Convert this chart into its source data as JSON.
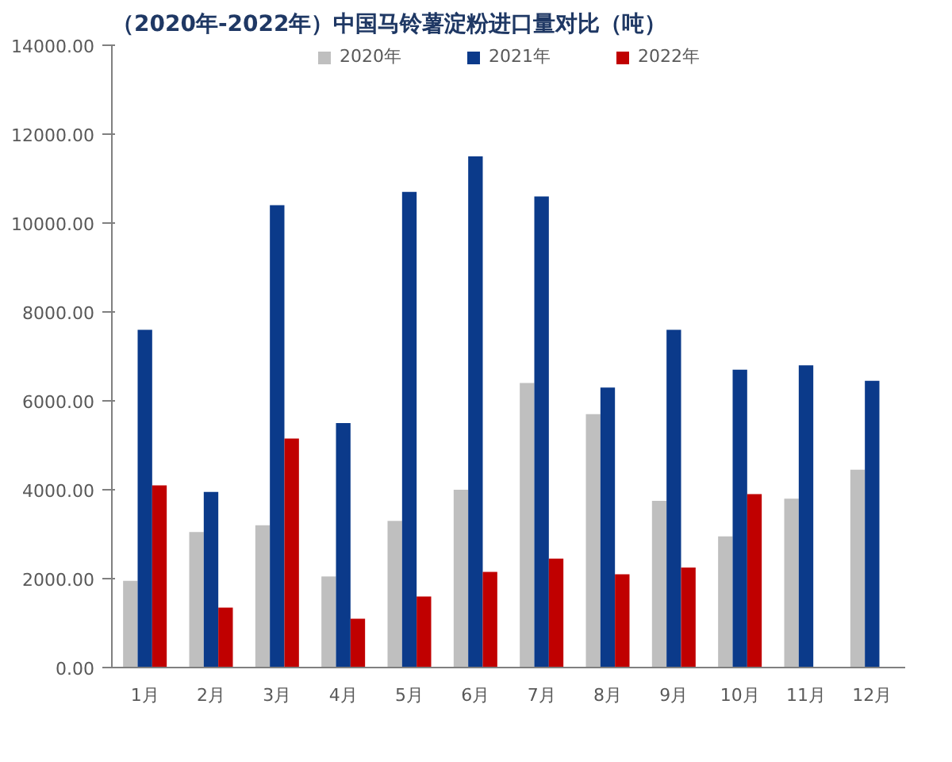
{
  "chart_data": {
    "type": "bar",
    "title": "（2020年-2022年）中国马铃薯淀粉进口量对比（吨）",
    "categories": [
      "1月",
      "2月",
      "3月",
      "4月",
      "5月",
      "6月",
      "7月",
      "8月",
      "9月",
      "10月",
      "11月",
      "12月"
    ],
    "series": [
      {
        "name": "2020年",
        "color": "#bfbfbf",
        "values": [
          1950,
          3050,
          3200,
          2050,
          3300,
          4000,
          6400,
          5700,
          3750,
          2950,
          3800,
          4450
        ]
      },
      {
        "name": "2021年",
        "color": "#0b3a8a",
        "values": [
          7600,
          3950,
          10400,
          5500,
          10700,
          11500,
          10600,
          6300,
          7600,
          6700,
          6800,
          6450
        ]
      },
      {
        "name": "2022年",
        "color": "#c00000",
        "values": [
          4100,
          1350,
          5150,
          1100,
          1600,
          2150,
          2450,
          2100,
          2250,
          3900,
          null,
          null
        ]
      }
    ],
    "ylim": [
      0,
      14000
    ],
    "yticks": [
      {
        "value": 0,
        "label": "0.00"
      },
      {
        "value": 2000,
        "label": "2000.00"
      },
      {
        "value": 4000,
        "label": "4000.00"
      },
      {
        "value": 6000,
        "label": "6000.00"
      },
      {
        "value": 8000,
        "label": "8000.00"
      },
      {
        "value": 10000,
        "label": "10000.00"
      },
      {
        "value": 12000,
        "label": "12000.00"
      },
      {
        "value": 14000,
        "label": "14000.00"
      }
    ],
    "grid": false,
    "legend": "top"
  }
}
